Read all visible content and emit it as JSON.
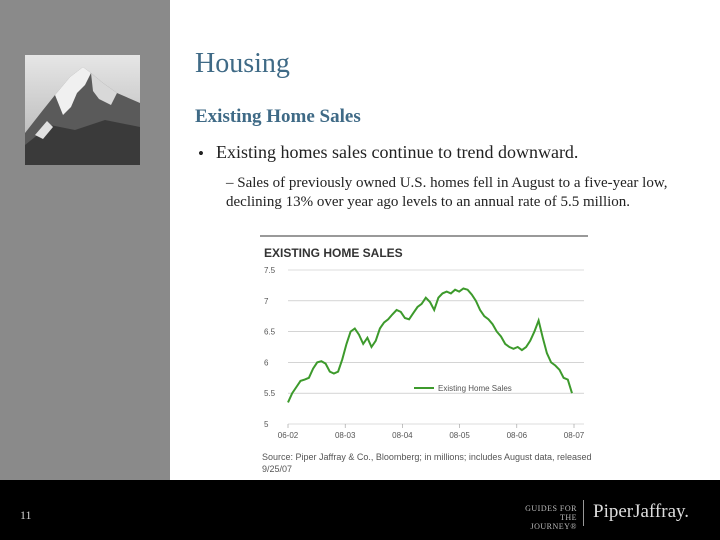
{
  "slide": {
    "title": "Housing",
    "subtitle": "Existing Home Sales",
    "bullet_marker": "•",
    "bullet": "Existing homes sales continue to trend downward.",
    "sub_bullet": "– Sales of previously owned U.S. homes fell in August to a five-year low, declining 13% over year ago levels to an annual rate of 5.5 million.",
    "page_number": "11"
  },
  "logo": {
    "guides_line1": "GUIDES FOR",
    "guides_line2": "THE JOURNEY®",
    "name": "PiperJaffray."
  },
  "colors": {
    "heading": "#3f6a86",
    "series": "#3d9a2c",
    "sidebar": "#8a8a8a"
  },
  "chart_data": {
    "type": "line",
    "title": "EXISTING HOME SALES",
    "ylim": [
      5,
      7.5
    ],
    "yticks": [
      "7.5",
      "7",
      "6.5",
      "6",
      "5.5",
      "5"
    ],
    "xticks": [
      "06-02",
      "08-03",
      "08-04",
      "08-05",
      "08-06",
      "08-07"
    ],
    "legend": "Existing Home Sales",
    "legend_position": "center-right",
    "source": "Source: Piper Jaffray & Co., Bloomberg; in millions; includes August data, released 9/25/07",
    "series": [
      {
        "name": "Existing Home Sales",
        "values": [
          5.35,
          5.5,
          5.6,
          5.7,
          5.72,
          5.75,
          5.9,
          6.0,
          6.02,
          5.98,
          5.85,
          5.82,
          5.85,
          6.05,
          6.3,
          6.5,
          6.55,
          6.45,
          6.3,
          6.4,
          6.25,
          6.35,
          6.55,
          6.65,
          6.7,
          6.78,
          6.85,
          6.82,
          6.72,
          6.7,
          6.8,
          6.9,
          6.95,
          7.05,
          6.98,
          6.85,
          7.05,
          7.12,
          7.15,
          7.12,
          7.18,
          7.15,
          7.2,
          7.18,
          7.1,
          7.0,
          6.85,
          6.75,
          6.7,
          6.62,
          6.5,
          6.42,
          6.3,
          6.25,
          6.22,
          6.25,
          6.2,
          6.25,
          6.35,
          6.5,
          6.68,
          6.4,
          6.15,
          6.0,
          5.95,
          5.88,
          5.75,
          5.72,
          5.5
        ]
      }
    ]
  }
}
